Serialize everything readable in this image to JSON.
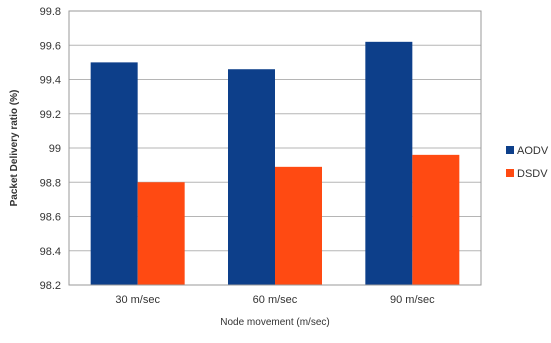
{
  "chart_data": {
    "type": "bar",
    "categories": [
      "30 m/sec",
      "60 m/sec",
      "90 m/sec"
    ],
    "series": [
      {
        "name": "AODV",
        "values": [
          99.5,
          99.46,
          99.62
        ],
        "color": "#0d3f8a"
      },
      {
        "name": "DSDV",
        "values": [
          98.8,
          98.89,
          98.96
        ],
        "color": "#ff4a12"
      }
    ],
    "xlabel": "Node movement (m/sec)",
    "ylabel": "Packet Delivery ratio (%)",
    "ylim": [
      98.2,
      99.8
    ],
    "yticks": [
      "98.2",
      "98.4",
      "98.6",
      "98.8",
      "99",
      "99.2",
      "99.4",
      "99.6",
      "99.8"
    ],
    "grid": true,
    "legend_position": "right"
  }
}
